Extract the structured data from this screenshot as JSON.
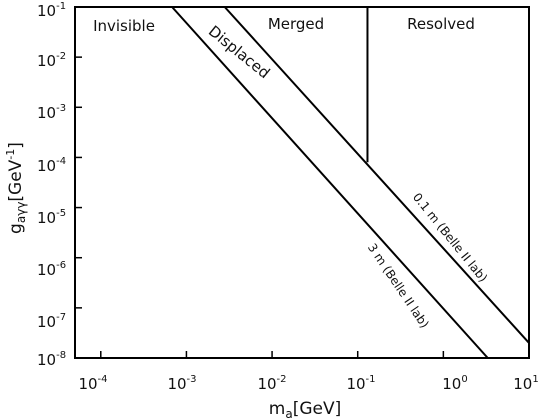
{
  "chart_data": {
    "type": "line",
    "xlabel": {
      "main": "m",
      "sub": "a",
      "unit": "[GeV]"
    },
    "ylabel": {
      "main": "g",
      "sub": "aγγ",
      "unit": "[GeV",
      "unit_sup": "-1",
      "unit_close": "]"
    },
    "x_scale": "log",
    "y_scale": "log",
    "xlim": [
      5e-05,
      10
    ],
    "ylim": [
      1e-08,
      0.1
    ],
    "x_ticks": [
      {
        "base": "10",
        "exp": "-4",
        "value": 0.0001
      },
      {
        "base": "10",
        "exp": "-3",
        "value": 0.001
      },
      {
        "base": "10",
        "exp": "-2",
        "value": 0.01
      },
      {
        "base": "10",
        "exp": "-1",
        "value": 0.1
      },
      {
        "base": "10",
        "exp": "0",
        "value": 1
      },
      {
        "base": "10",
        "exp": "1",
        "value": 10
      }
    ],
    "y_ticks": [
      {
        "base": "10",
        "exp": "-8",
        "value": 1e-08
      },
      {
        "base": "10",
        "exp": "-7",
        "value": 1e-07
      },
      {
        "base": "10",
        "exp": "-6",
        "value": 1e-06
      },
      {
        "base": "10",
        "exp": "-5",
        "value": 1e-05
      },
      {
        "base": "10",
        "exp": "-4",
        "value": 0.0001
      },
      {
        "base": "10",
        "exp": "-3",
        "value": 0.001
      },
      {
        "base": "10",
        "exp": "-2",
        "value": 0.01
      },
      {
        "base": "10",
        "exp": "-1",
        "value": 0.1
      }
    ],
    "grid": false,
    "series": [
      {
        "name": "3 m (Belle II lab)",
        "points": [
          {
            "x": 0.00068,
            "y": 0.1
          },
          {
            "x": 3.3,
            "y": 1e-08
          }
        ]
      },
      {
        "name": "0.1 m (Belle II lab)",
        "points": [
          {
            "x": 0.0028,
            "y": 0.1
          },
          {
            "x": 10,
            "y": 2e-08
          }
        ]
      },
      {
        "name": "merged-resolved boundary",
        "points": [
          {
            "x": 0.13,
            "y": 0.1
          },
          {
            "x": 0.13,
            "y": 8e-05
          }
        ]
      }
    ],
    "regions": [
      {
        "label": "Invisible"
      },
      {
        "label": "Merged"
      },
      {
        "label": "Resolved"
      },
      {
        "label": "Displaced"
      }
    ]
  }
}
